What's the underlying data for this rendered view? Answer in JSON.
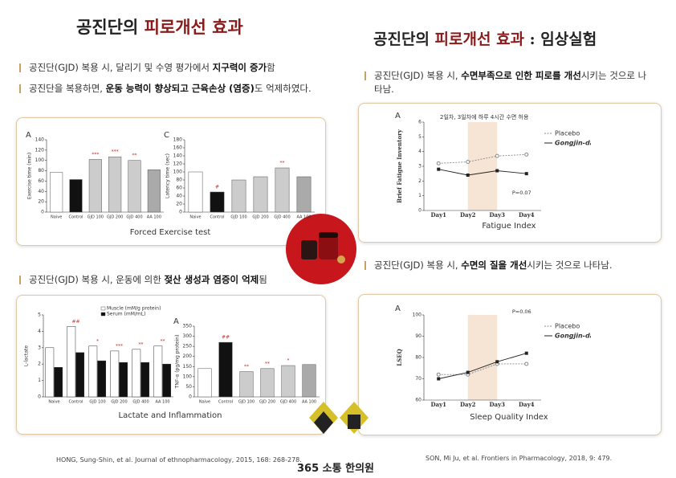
{
  "left": {
    "title": [
      "공진단의 ",
      "피로개선 효과"
    ],
    "bullets": [
      [
        "공진단(GJD) 복용 시, 달리기 및 수영 평가에서 ",
        "지구력이 증가",
        "함"
      ],
      [
        "공진단을 복용하면, ",
        "운동 능력이 향상되고 근육손상 (염증)",
        "도 억제하였다."
      ]
    ],
    "caption1": "Forced Exercise test",
    "bullet3": [
      "공진단(GJD) 복용 시, 운동에 의한 ",
      "젖산 생성과 염증이 억제",
      "됨"
    ],
    "caption2": "Lactate and Inflammation",
    "reference": "HONG, Sung-Shin, et al. Journal of ethnopharmacology, 2015, 168: 268-278."
  },
  "right": {
    "title": [
      "공진단의 ",
      "피로개선 효과",
      " : 임상실험"
    ],
    "bullet1": [
      "공진단(GJD) 복용 시, ",
      "수면부족으로 인한 피로를 개선",
      "시키는 것으로 나타남."
    ],
    "caption1": "Fatigue Index",
    "bullet2": [
      "공진단(GJD) 복용 시, ",
      "수면의 질을 개선",
      "시키는 것으로 나타남."
    ],
    "caption2": "Sleep Quality Index",
    "reference": "SON, Mi Ju, et al. Frontiers in Pharmacology, 2018, 9: 479."
  },
  "logo": "365 소통 한의원",
  "chart_data": [
    {
      "type": "bar",
      "panel_label": "A",
      "y_label": "Exercise time (min)",
      "categories": [
        "Naive",
        "Control",
        "GJD 100",
        "GJD 200",
        "GJD 400",
        "AA 100"
      ],
      "values": [
        77,
        63,
        102,
        107,
        100,
        82
      ],
      "colors": [
        "#ffffff",
        "#111111",
        "#cccccc",
        "#cccccc",
        "#cccccc",
        "#aaaaaa"
      ],
      "ylim": [
        0,
        140
      ],
      "yticks": [
        0,
        20,
        40,
        60,
        80,
        100,
        120,
        140
      ],
      "annotations": [
        {
          "index": 2,
          "text": "***"
        },
        {
          "index": 3,
          "text": "***"
        },
        {
          "index": 4,
          "text": "**"
        }
      ]
    },
    {
      "type": "bar",
      "panel_label": "C",
      "y_label": "Latency time (sec)",
      "categories": [
        "Naive",
        "Control",
        "GJD 100",
        "GJD 200",
        "GJD 400",
        "AA 100"
      ],
      "values": [
        100,
        50,
        80,
        88,
        110,
        88
      ],
      "colors": [
        "#ffffff",
        "#111111",
        "#cccccc",
        "#cccccc",
        "#cccccc",
        "#aaaaaa"
      ],
      "ylim": [
        0,
        180
      ],
      "yticks": [
        0,
        20,
        40,
        60,
        80,
        100,
        120,
        140,
        160,
        180
      ],
      "annotations": [
        {
          "index": 1,
          "text": "#"
        },
        {
          "index": 4,
          "text": "**"
        }
      ]
    },
    {
      "type": "grouped_bar",
      "y_label": "L-lactate",
      "categories": [
        "Naive",
        "Control",
        "GJD 100",
        "GJD 200",
        "GJD 400",
        "AA 100"
      ],
      "series": [
        {
          "name": "Muscle (mM/g protein)",
          "color": "#ffffff",
          "values": [
            3.0,
            4.3,
            3.1,
            2.8,
            2.9,
            3.1
          ]
        },
        {
          "name": "Serum (mM/mL)",
          "color": "#111111",
          "values": [
            1.8,
            2.7,
            2.2,
            2.1,
            2.1,
            2.0
          ]
        }
      ],
      "ylim": [
        0,
        5
      ],
      "yticks": [
        0,
        1,
        2,
        3,
        4,
        5
      ],
      "annotations": [
        {
          "index": 1,
          "text": "##"
        },
        {
          "index": 2,
          "text": "*"
        },
        {
          "index": 3,
          "text": "***"
        },
        {
          "index": 4,
          "text": "**"
        },
        {
          "index": 5,
          "text": "**"
        }
      ]
    },
    {
      "type": "bar",
      "panel_label": "A",
      "y_label": "TNF-α (pg/mg protein)",
      "categories": [
        "Naive",
        "Control",
        "GJD 100",
        "GJD 200",
        "GJD 400",
        "AA 100"
      ],
      "values": [
        140,
        270,
        125,
        140,
        155,
        160
      ],
      "colors": [
        "#ffffff",
        "#111111",
        "#cccccc",
        "#cccccc",
        "#cccccc",
        "#aaaaaa"
      ],
      "ylim": [
        0,
        350
      ],
      "yticks": [
        0,
        50,
        100,
        150,
        200,
        250,
        300,
        350
      ],
      "annotations": [
        {
          "index": 1,
          "text": "##"
        },
        {
          "index": 2,
          "text": "**"
        },
        {
          "index": 3,
          "text": "**"
        },
        {
          "index": 4,
          "text": "*"
        }
      ]
    },
    {
      "type": "line",
      "panel_label": "A",
      "y_label": "Brief Fatigue Inventory",
      "note": "2일차, 3일차에 하루 4시간 수면 허용",
      "p_label": "P=0.07",
      "categories": [
        "Day1",
        "Day2",
        "Day3",
        "Day4"
      ],
      "series": [
        {
          "name": "Placebo",
          "color": "#888888",
          "values": [
            3.2,
            3.3,
            3.7,
            3.8
          ]
        },
        {
          "name": "Gongjin-dan",
          "color": "#222222",
          "values": [
            2.8,
            2.4,
            2.7,
            2.5
          ]
        }
      ],
      "ylim": [
        0,
        6
      ],
      "yticks": [
        0,
        1,
        2,
        3,
        4,
        5,
        6
      ]
    },
    {
      "type": "line",
      "panel_label": "A",
      "y_label": "LSEQ",
      "p_label": "P=0.06",
      "categories": [
        "Day1",
        "Day2",
        "Day3",
        "Day4"
      ],
      "series": [
        {
          "name": "Placebo",
          "color": "#888888",
          "values": [
            72,
            72,
            77,
            77
          ]
        },
        {
          "name": "Gongjin-dan",
          "color": "#222222",
          "values": [
            70,
            73,
            78,
            82
          ]
        }
      ],
      "ylim": [
        60,
        100
      ],
      "yticks": [
        60,
        70,
        80,
        90,
        100
      ]
    }
  ]
}
